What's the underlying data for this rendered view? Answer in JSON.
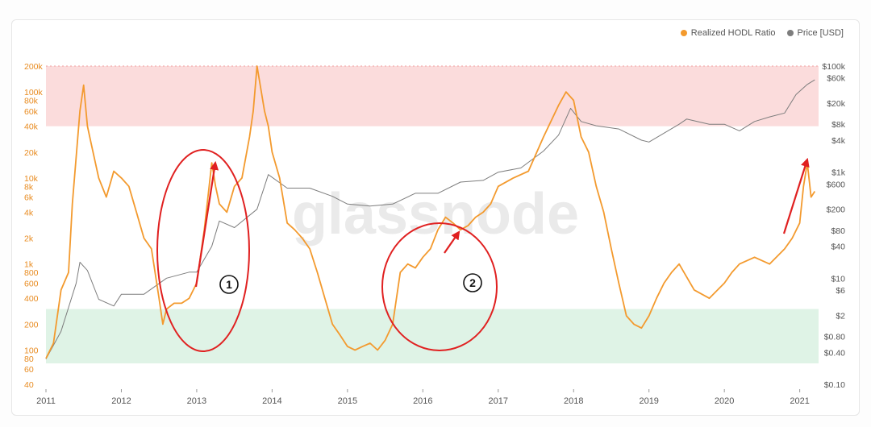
{
  "legend": {
    "hodl_label": "Realized HODL Ratio",
    "price_label": "Price [USD]"
  },
  "watermark": "glassnode",
  "annotations": {
    "circle1_label": "1",
    "circle2_label": "2"
  },
  "colors": {
    "hodl": "#f39a2e",
    "price": "#7d7d7d",
    "upper_band": "#fbdcdc",
    "lower_band": "#dff3e6",
    "annotation": "#e02020"
  },
  "chart_data": {
    "type": "line",
    "x_ticks": [
      "2011",
      "2012",
      "2013",
      "2014",
      "2015",
      "2016",
      "2017",
      "2018",
      "2019",
      "2020",
      "2021"
    ],
    "left_ticks": [
      "200k",
      "100k",
      "80k",
      "60k",
      "40k",
      "20k",
      "10k",
      "8k",
      "6k",
      "4k",
      "2k",
      "1k",
      "800",
      "600",
      "400",
      "200",
      "100",
      "80",
      "60",
      "40"
    ],
    "right_ticks": [
      "$100k",
      "$60k",
      "$20k",
      "$8k",
      "$4k",
      "$1k",
      "$600",
      "$200",
      "$80",
      "$40",
      "$10",
      "$6",
      "$2",
      "$0.80",
      "$0.40",
      "$0.10"
    ],
    "left_axis": {
      "label": "",
      "scale": "log",
      "range": [
        40,
        200000
      ]
    },
    "right_axis": {
      "label": "",
      "scale": "log",
      "range": [
        0.1,
        100000
      ]
    },
    "bands": [
      {
        "name": "upper",
        "range": [
          40000,
          200000
        ]
      },
      {
        "name": "lower",
        "range": [
          70,
          300
        ]
      }
    ],
    "series": [
      {
        "name": "Realized HODL Ratio",
        "axis": "left",
        "x": [
          2011.0,
          2011.1,
          2011.2,
          2011.3,
          2011.35,
          2011.45,
          2011.5,
          2011.55,
          2011.6,
          2011.7,
          2011.8,
          2011.9,
          2012.0,
          2012.1,
          2012.2,
          2012.3,
          2012.4,
          2012.5,
          2012.55,
          2012.6,
          2012.7,
          2012.8,
          2012.9,
          2013.0,
          2013.1,
          2013.2,
          2013.25,
          2013.3,
          2013.4,
          2013.5,
          2013.6,
          2013.7,
          2013.75,
          2013.8,
          2013.9,
          2013.95,
          2014.0,
          2014.1,
          2014.2,
          2014.3,
          2014.4,
          2014.5,
          2014.6,
          2014.7,
          2014.8,
          2014.9,
          2015.0,
          2015.1,
          2015.2,
          2015.3,
          2015.4,
          2015.5,
          2015.6,
          2015.7,
          2015.8,
          2015.9,
          2016.0,
          2016.1,
          2016.2,
          2016.3,
          2016.4,
          2016.5,
          2016.6,
          2016.7,
          2016.8,
          2016.9,
          2017.0,
          2017.2,
          2017.4,
          2017.6,
          2017.8,
          2017.9,
          2018.0,
          2018.1,
          2018.2,
          2018.3,
          2018.4,
          2018.5,
          2018.6,
          2018.7,
          2018.8,
          2018.9,
          2019.0,
          2019.1,
          2019.2,
          2019.3,
          2019.4,
          2019.6,
          2019.8,
          2020.0,
          2020.1,
          2020.2,
          2020.4,
          2020.6,
          2020.8,
          2020.9,
          2021.0,
          2021.05,
          2021.1,
          2021.15,
          2021.2
        ],
        "values": [
          80,
          120,
          500,
          800,
          5000,
          60000,
          120000,
          40000,
          25000,
          10000,
          6000,
          12000,
          10000,
          8000,
          4000,
          2000,
          1500,
          400,
          200,
          300,
          350,
          350,
          400,
          600,
          2500,
          15000,
          8000,
          5000,
          4000,
          8000,
          10000,
          30000,
          60000,
          200000,
          60000,
          40000,
          20000,
          10000,
          3000,
          2500,
          2000,
          1500,
          800,
          400,
          200,
          150,
          110,
          100,
          110,
          120,
          100,
          130,
          200,
          800,
          1000,
          900,
          1200,
          1500,
          2500,
          3500,
          3000,
          2500,
          2800,
          3500,
          4000,
          5000,
          8000,
          10000,
          12000,
          30000,
          70000,
          100000,
          80000,
          30000,
          20000,
          8000,
          4000,
          1500,
          600,
          250,
          200,
          180,
          250,
          400,
          600,
          800,
          1000,
          500,
          400,
          600,
          800,
          1000,
          1200,
          1000,
          1500,
          2000,
          3000,
          8000,
          15000,
          6000,
          7000
        ]
      },
      {
        "name": "Price [USD]",
        "axis": "right",
        "x": [
          2011.0,
          2011.2,
          2011.4,
          2011.45,
          2011.55,
          2011.7,
          2011.9,
          2012.0,
          2012.3,
          2012.6,
          2012.9,
          2013.0,
          2013.2,
          2013.3,
          2013.5,
          2013.8,
          2013.95,
          2014.2,
          2014.5,
          2014.8,
          2015.0,
          2015.3,
          2015.6,
          2015.9,
          2016.2,
          2016.5,
          2016.8,
          2017.0,
          2017.3,
          2017.6,
          2017.8,
          2017.96,
          2018.1,
          2018.3,
          2018.6,
          2018.9,
          2019.0,
          2019.4,
          2019.5,
          2019.8,
          2020.0,
          2020.2,
          2020.4,
          2020.6,
          2020.8,
          2020.95,
          2021.1,
          2021.2
        ],
        "values": [
          0.3,
          1,
          8,
          20,
          14,
          4,
          3,
          5,
          5,
          10,
          13,
          13,
          40,
          120,
          90,
          200,
          900,
          500,
          500,
          350,
          250,
          230,
          250,
          400,
          400,
          650,
          700,
          1000,
          1200,
          2500,
          5000,
          16000,
          9000,
          7500,
          6500,
          4000,
          3700,
          8000,
          10000,
          8000,
          8000,
          6000,
          9000,
          11000,
          13000,
          29000,
          45000,
          55000
        ]
      }
    ],
    "annotations": [
      {
        "label": "1",
        "note": "red ellipse around late 2012 – early 2013 rise"
      },
      {
        "label": "2",
        "note": "red ellipse around early–mid 2016 rise"
      }
    ],
    "grid": false,
    "legend_position": "top-right"
  }
}
